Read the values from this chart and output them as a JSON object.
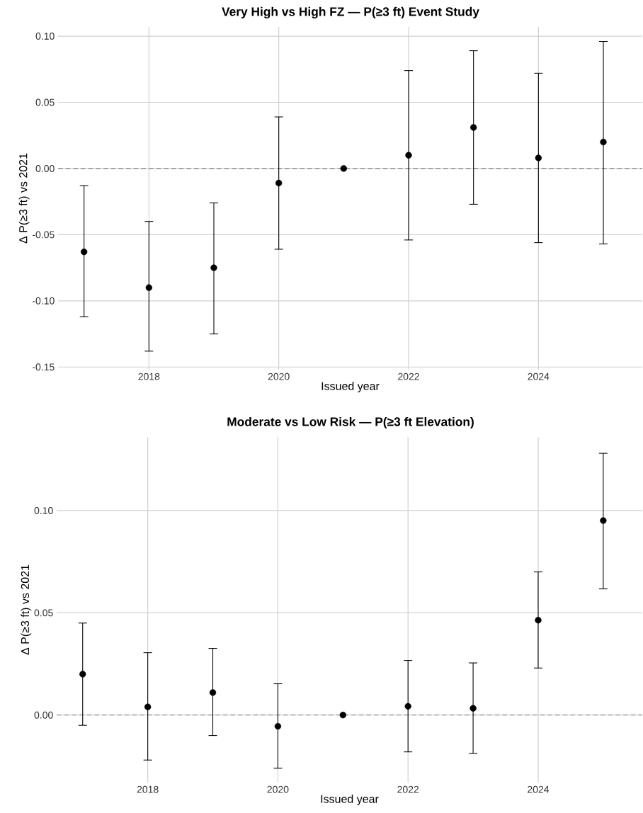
{
  "chart_data": [
    {
      "type": "scatter",
      "title": "Very High vs High FZ — P(≥3 ft) Event Study",
      "xlabel": "Issued year",
      "ylabel": "Δ P(≥3 ft) vs 2021",
      "x": [
        2017,
        2018,
        2019,
        2020,
        2021,
        2022,
        2023,
        2024,
        2025
      ],
      "values": [
        -0.063,
        -0.09,
        -0.075,
        -0.011,
        0,
        0.01,
        0.031,
        0.008,
        0.02
      ],
      "errors": [
        [
          -0.112,
          -0.013
        ],
        [
          -0.138,
          -0.04
        ],
        [
          -0.125,
          -0.026
        ],
        [
          -0.061,
          0.039
        ],
        null,
        [
          -0.054,
          0.074
        ],
        [
          -0.027,
          0.089
        ],
        [
          -0.056,
          0.072
        ],
        [
          -0.057,
          0.096
        ]
      ],
      "color": "#000000",
      "xlim": [
        2016.6,
        2025.6
      ],
      "ylim": [
        -0.152,
        0.107
      ],
      "xticks": [
        2018,
        2020,
        2022,
        2024
      ],
      "yticks": [
        {
          "value": -0.15,
          "label": "-0.15"
        },
        {
          "value": -0.1,
          "label": "-0.10"
        },
        {
          "value": -0.05,
          "label": "-0.05"
        },
        {
          "value": 0,
          "label": "0.00"
        },
        {
          "value": 0.05,
          "label": "0.05"
        },
        {
          "value": 0.1,
          "label": "0.10"
        }
      ],
      "grid": true,
      "ref_lines": [
        {
          "axis": "y",
          "value": 0,
          "color": "#808080",
          "line_style": "dashed"
        }
      ]
    },
    {
      "type": "scatter",
      "title": "Moderate vs Low Risk — P(≥3 ft Elevation)",
      "xlabel": "Issued year",
      "ylabel": "Δ P(≥3 ft) vs 2021",
      "x": [
        2017,
        2018,
        2019,
        2020,
        2021,
        2022,
        2023,
        2024,
        2025
      ],
      "values": [
        0.02,
        0.004,
        0.011,
        -0.0055,
        0,
        0.0043,
        0.0033,
        0.0464,
        0.0951
      ],
      "errors": [
        [
          -0.005,
          0.045
        ],
        [
          -0.022,
          0.0305
        ],
        [
          -0.01,
          0.0326
        ],
        [
          -0.026,
          0.0153
        ],
        null,
        [
          -0.018,
          0.0267
        ],
        [
          -0.0187,
          0.0255
        ],
        [
          0.023,
          0.07
        ],
        [
          0.0617,
          0.128
        ]
      ],
      "color": "#000000",
      "xlim": [
        2016.6,
        2025.6
      ],
      "ylim": [
        -0.033,
        0.136
      ],
      "xticks": [
        2018,
        2020,
        2022,
        2024
      ],
      "yticks": [
        {
          "value": 0,
          "label": "0.00"
        },
        {
          "value": 0.05,
          "label": "0.05"
        },
        {
          "value": 0.1,
          "label": "0.10"
        }
      ],
      "grid": true,
      "ref_lines": [
        {
          "axis": "y",
          "value": 0,
          "color": "#808080",
          "line_style": "dashed"
        }
      ]
    }
  ]
}
